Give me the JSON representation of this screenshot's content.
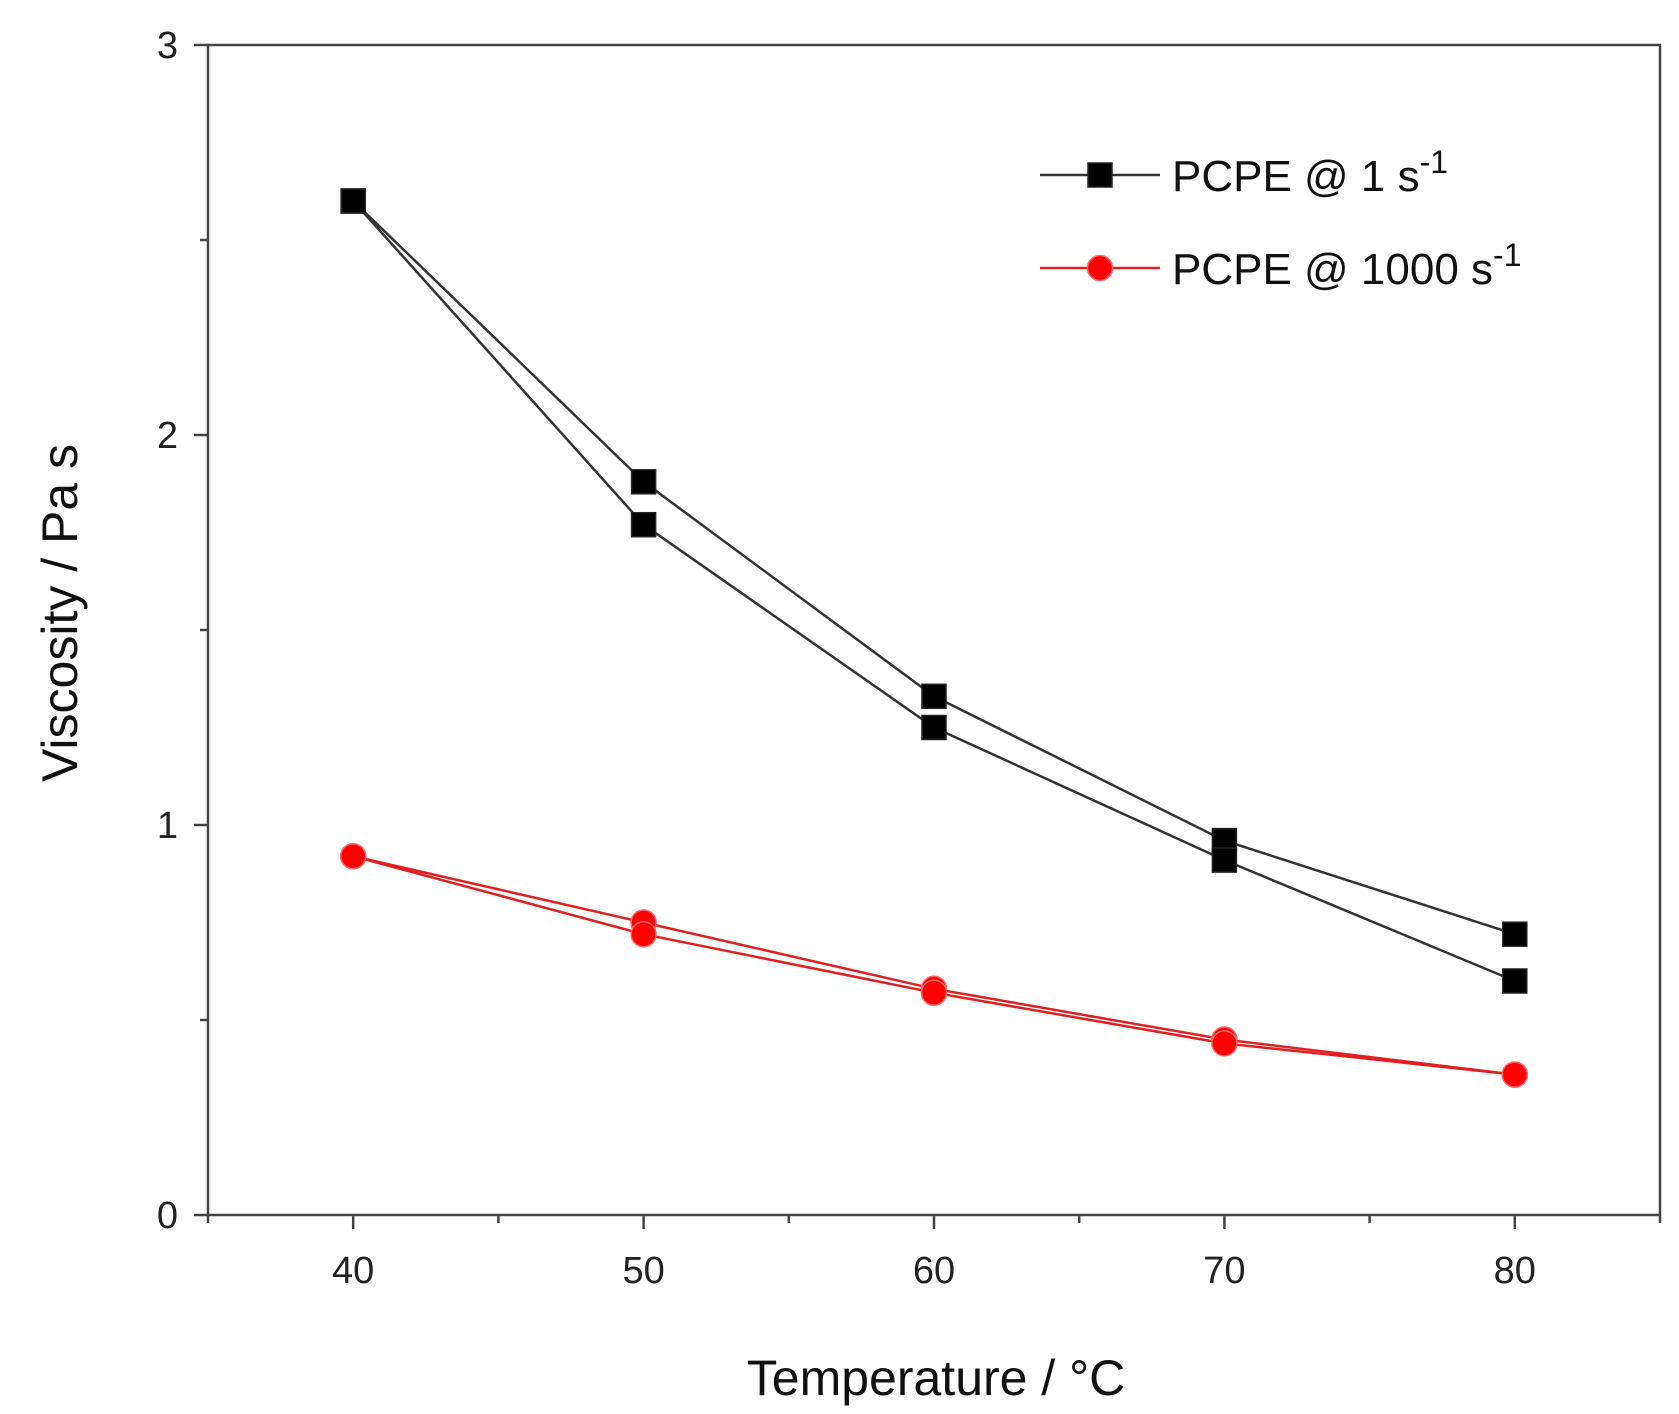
{
  "chart_data": {
    "type": "line",
    "xlabel": "Temperature / °C",
    "ylabel": "Viscosity / Pa s",
    "xlim": [
      35,
      85
    ],
    "ylim": [
      0,
      3
    ],
    "x_ticks": [
      40,
      50,
      60,
      70,
      80
    ],
    "y_ticks": [
      0,
      1,
      2,
      3
    ],
    "grid": false,
    "legend_position": "top-right",
    "x": [
      40,
      50,
      60,
      70,
      80
    ],
    "series": [
      {
        "name": "PCPE @ 1 s",
        "name_superscript": "-1",
        "marker": "square",
        "color": "#000000",
        "line_color": "#333333",
        "curves": [
          [
            2.6,
            1.88,
            1.33,
            0.96,
            0.72
          ],
          [
            2.6,
            1.77,
            1.25,
            0.91,
            0.6
          ]
        ]
      },
      {
        "name": "PCPE @ 1000 s",
        "name_superscript": "-1",
        "marker": "circle",
        "color": "#ff0000",
        "line_color": "#e02020",
        "curves": [
          [
            0.92,
            0.75,
            0.58,
            0.45,
            0.36
          ],
          [
            0.92,
            0.72,
            0.57,
            0.44,
            0.36
          ]
        ]
      }
    ]
  }
}
